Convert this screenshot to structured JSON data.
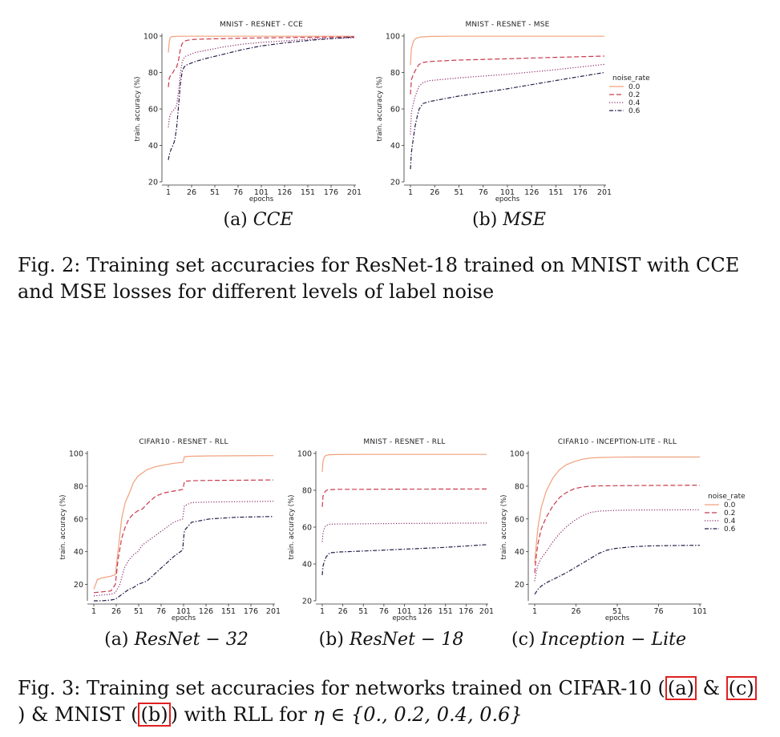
{
  "figure2": {
    "caption_label": "Fig. 2:",
    "caption_text": "Training set accuracies for ResNet-18 trained on MNIST with CCE and MSE losses for different levels of label noise",
    "subcaptions": [
      {
        "tag": "(a) ",
        "name": "CCE"
      },
      {
        "tag": "(b) ",
        "name": "MSE"
      }
    ]
  },
  "figure3": {
    "caption_label": "Fig. 3:",
    "caption_part1": "Training set accuracies for networks trained on CIFAR-10 (",
    "ref_a": "(a)",
    "amp1": " & ",
    "ref_c": "(c)",
    "amp2": ") & MNIST (",
    "ref_b": "(b)",
    "caption_part2": ") with RLL for ",
    "eta_expr": "η ∈ {0., 0.2, 0.4, 0.6}",
    "subcaptions": [
      {
        "tag": "(a) ",
        "name": "ResNet − 32"
      },
      {
        "tag": "(b) ",
        "name": "ResNet − 18"
      },
      {
        "tag": "(c) ",
        "name": "Inception − Lite"
      }
    ]
  },
  "chart_data": [
    {
      "type": "line",
      "title": "MNIST - RESNET - CCE",
      "xlabel": "epochs",
      "ylabel": "train. accuracy (%)",
      "xticks": [
        1,
        26,
        51,
        76,
        101,
        126,
        151,
        176,
        201
      ],
      "yticks": [
        20,
        40,
        60,
        80,
        100
      ],
      "xlim": [
        1,
        201
      ],
      "ylim": [
        20,
        100
      ],
      "legend": "none",
      "series": [
        {
          "noise": "0.0",
          "x": [
            1,
            2,
            3,
            4,
            5,
            8,
            12,
            20,
            40,
            100,
            201
          ],
          "y": [
            91,
            97,
            99,
            99.5,
            99.7,
            99.8,
            99.9,
            99.9,
            99.9,
            99.9,
            99.9
          ]
        },
        {
          "noise": "0.2",
          "x": [
            1,
            2,
            4,
            6,
            8,
            10,
            12,
            14,
            16,
            18,
            20,
            25,
            30,
            50,
            100,
            150,
            201
          ],
          "y": [
            72,
            77,
            79,
            80,
            82,
            83,
            87,
            93,
            96,
            97,
            97.5,
            98,
            98.2,
            98.5,
            99,
            99.3,
            99.5
          ]
        },
        {
          "noise": "0.4",
          "x": [
            1,
            2,
            4,
            6,
            8,
            10,
            12,
            14,
            16,
            18,
            20,
            25,
            30,
            40,
            60,
            80,
            100,
            130,
            160,
            201
          ],
          "y": [
            50,
            55,
            58,
            59,
            60,
            62,
            70,
            80,
            86,
            88,
            89,
            90,
            91,
            92,
            94,
            95.5,
            96.5,
            97.5,
            98.5,
            99
          ]
        },
        {
          "noise": "0.6",
          "x": [
            1,
            2,
            4,
            6,
            8,
            10,
            12,
            14,
            16,
            18,
            20,
            25,
            30,
            40,
            60,
            80,
            100,
            130,
            160,
            201
          ],
          "y": [
            32,
            35,
            38,
            40,
            43,
            50,
            62,
            74,
            81,
            83,
            84,
            85,
            86,
            87.5,
            90,
            92.5,
            94.5,
            96.5,
            98,
            99.5
          ]
        }
      ]
    },
    {
      "type": "line",
      "title": "MNIST - RESNET - MSE",
      "xlabel": "epochs",
      "ylabel": "train. accuracy (%)",
      "xticks": [
        1,
        26,
        51,
        76,
        101,
        126,
        151,
        176,
        201
      ],
      "yticks": [
        20,
        40,
        60,
        80,
        100
      ],
      "xlim": [
        1,
        201
      ],
      "ylim": [
        20,
        100
      ],
      "legend": "right",
      "legend_title": "noise_rate",
      "series": [
        {
          "name": "0.0",
          "x": [
            1,
            2,
            4,
            6,
            8,
            12,
            20,
            40,
            100,
            201
          ],
          "y": [
            84,
            93,
            97,
            98.5,
            99,
            99.5,
            99.8,
            99.9,
            99.9,
            99.9
          ]
        },
        {
          "name": "0.2",
          "x": [
            1,
            2,
            4,
            6,
            8,
            10,
            14,
            20,
            30,
            50,
            100,
            150,
            201
          ],
          "y": [
            68,
            76,
            79,
            81,
            83,
            84.5,
            85.5,
            86,
            86.3,
            86.8,
            87.5,
            88.3,
            89
          ]
        },
        {
          "name": "0.4",
          "x": [
            1,
            2,
            4,
            6,
            8,
            10,
            14,
            20,
            30,
            50,
            100,
            150,
            201
          ],
          "y": [
            46,
            58,
            63,
            67,
            70,
            72.5,
            74.5,
            75.5,
            76,
            77,
            79,
            81.5,
            84.5
          ]
        },
        {
          "name": "0.6",
          "x": [
            1,
            2,
            4,
            6,
            8,
            10,
            14,
            20,
            30,
            50,
            100,
            150,
            201
          ],
          "y": [
            27,
            36,
            44,
            51,
            56,
            60,
            63,
            64,
            65,
            67,
            71,
            75.5,
            80
          ]
        }
      ]
    },
    {
      "type": "line",
      "title": "CIFAR10 - RESNET - RLL",
      "xlabel": "epochs",
      "ylabel": "train. accuracy (%)",
      "xticks": [
        1,
        26,
        51,
        76,
        101,
        126,
        151,
        176,
        201
      ],
      "yticks": [
        20,
        40,
        60,
        80,
        100
      ],
      "xlim": [
        1,
        201
      ],
      "ylim": [
        10,
        100
      ],
      "legend": "none",
      "series": [
        {
          "noise": "0.0",
          "x": [
            1,
            5,
            10,
            20,
            25,
            28,
            32,
            36,
            40,
            45,
            50,
            60,
            70,
            80,
            90,
            100,
            101,
            102,
            110,
            130,
            160,
            201
          ],
          "y": [
            17,
            23,
            24,
            25,
            26,
            40,
            60,
            70,
            75,
            82,
            86,
            90,
            92,
            93,
            94,
            94.5,
            96,
            98,
            98.3,
            98.5,
            98.6,
            98.7
          ]
        },
        {
          "noise": "0.2",
          "x": [
            1,
            10,
            20,
            25,
            28,
            32,
            36,
            40,
            45,
            50,
            55,
            60,
            70,
            80,
            90,
            100,
            101,
            102,
            110,
            130,
            160,
            201
          ],
          "y": [
            15,
            15.5,
            16,
            20,
            35,
            48,
            55,
            60,
            63,
            65,
            66,
            69,
            74,
            76,
            77,
            78,
            80,
            83,
            83.3,
            83.5,
            83.6,
            83.8
          ]
        },
        {
          "noise": "0.4",
          "x": [
            1,
            10,
            20,
            25,
            30,
            35,
            40,
            45,
            50,
            55,
            60,
            70,
            80,
            90,
            100,
            101,
            102,
            110,
            130,
            160,
            201
          ],
          "y": [
            13,
            13.5,
            14,
            15,
            20,
            30,
            35,
            38,
            40,
            44,
            46,
            50,
            54,
            58,
            60,
            64,
            68,
            70,
            70.3,
            70.5,
            70.8
          ]
        },
        {
          "noise": "0.6",
          "x": [
            1,
            10,
            20,
            25,
            30,
            35,
            40,
            45,
            50,
            55,
            60,
            70,
            80,
            90,
            100,
            101,
            102,
            110,
            130,
            160,
            201
          ],
          "y": [
            10,
            10,
            10.5,
            11,
            13,
            15,
            17,
            18,
            20,
            21,
            22,
            27,
            32,
            37,
            41,
            48,
            53,
            58,
            60,
            61,
            61.5
          ]
        }
      ]
    },
    {
      "type": "line",
      "title": "MNIST - RESNET - RLL",
      "xlabel": "epochs",
      "ylabel": "train. accuracy (%)",
      "xticks": [
        1,
        26,
        51,
        76,
        101,
        126,
        151,
        176,
        201
      ],
      "yticks": [
        20,
        40,
        60,
        80,
        100
      ],
      "xlim": [
        1,
        201
      ],
      "ylim": [
        20,
        100
      ],
      "legend": "none",
      "series": [
        {
          "noise": "0.0",
          "x": [
            1,
            2,
            4,
            6,
            10,
            20,
            50,
            100,
            201
          ],
          "y": [
            90,
            96,
            98.5,
            99,
            99.3,
            99.4,
            99.5,
            99.5,
            99.5
          ]
        },
        {
          "noise": "0.2",
          "x": [
            1,
            2,
            4,
            6,
            10,
            20,
            50,
            100,
            201
          ],
          "y": [
            71,
            77,
            79,
            80,
            80.3,
            80.5,
            80.5,
            80.6,
            80.7
          ]
        },
        {
          "noise": "0.4",
          "x": [
            1,
            2,
            4,
            6,
            10,
            20,
            50,
            100,
            201
          ],
          "y": [
            52,
            57,
            60,
            61,
            61.5,
            61.7,
            61.8,
            62,
            62.2
          ]
        },
        {
          "noise": "0.6",
          "x": [
            1,
            2,
            4,
            6,
            10,
            20,
            50,
            100,
            150,
            201
          ],
          "y": [
            34,
            39,
            42,
            44,
            46,
            46.5,
            47,
            48,
            49,
            50.5
          ]
        }
      ]
    },
    {
      "type": "line",
      "title": "CIFAR10 - INCEPTION-LITE - RLL",
      "xlabel": "epochs",
      "ylabel": "train. accuracy (%)",
      "xticks": [
        1,
        26,
        51,
        76,
        101
      ],
      "yticks": [
        20,
        40,
        60,
        80,
        100
      ],
      "xlim": [
        1,
        101
      ],
      "ylim": [
        10,
        100
      ],
      "legend": "right",
      "legend_title": "noise_rate",
      "series": [
        {
          "name": "0.0",
          "x": [
            1,
            2,
            3,
            5,
            8,
            12,
            16,
            20,
            25,
            30,
            35,
            40,
            50,
            60,
            80,
            101
          ],
          "y": [
            33,
            45,
            55,
            67,
            77,
            85,
            90,
            93,
            95,
            96.5,
            97.2,
            97.5,
            97.7,
            97.8,
            97.8,
            97.8
          ]
        },
        {
          "name": "0.2",
          "x": [
            1,
            2,
            3,
            5,
            8,
            12,
            16,
            20,
            25,
            30,
            35,
            40,
            50,
            60,
            80,
            101
          ],
          "y": [
            27,
            38,
            45,
            54,
            61,
            68,
            73,
            76,
            78.5,
            79.5,
            80,
            80.2,
            80.3,
            80.4,
            80.5,
            80.6
          ]
        },
        {
          "name": "0.4",
          "x": [
            1,
            2,
            3,
            5,
            8,
            12,
            16,
            20,
            25,
            30,
            35,
            40,
            50,
            60,
            80,
            101
          ],
          "y": [
            22,
            28,
            32,
            36,
            40,
            46,
            51,
            55,
            59,
            62,
            64,
            64.8,
            65.2,
            65.4,
            65.5,
            65.6
          ]
        },
        {
          "name": "0.6",
          "x": [
            1,
            3,
            5,
            8,
            12,
            16,
            20,
            25,
            30,
            35,
            40,
            45,
            50,
            60,
            70,
            80,
            90,
            101
          ],
          "y": [
            14,
            17,
            19,
            21,
            23,
            25,
            27,
            30,
            33,
            36,
            39,
            41,
            42,
            43,
            43.5,
            43.7,
            43.8,
            43.9
          ]
        }
      ]
    }
  ],
  "styles": {
    "colors": [
      "#f0a07c",
      "#c83a4e",
      "#8a2a6a",
      "#2a1c4a"
    ],
    "dashes": [
      "",
      "6,3",
      "1.2,2",
      "5,2,1.5,2"
    ],
    "highlight_box": "#e02020"
  }
}
